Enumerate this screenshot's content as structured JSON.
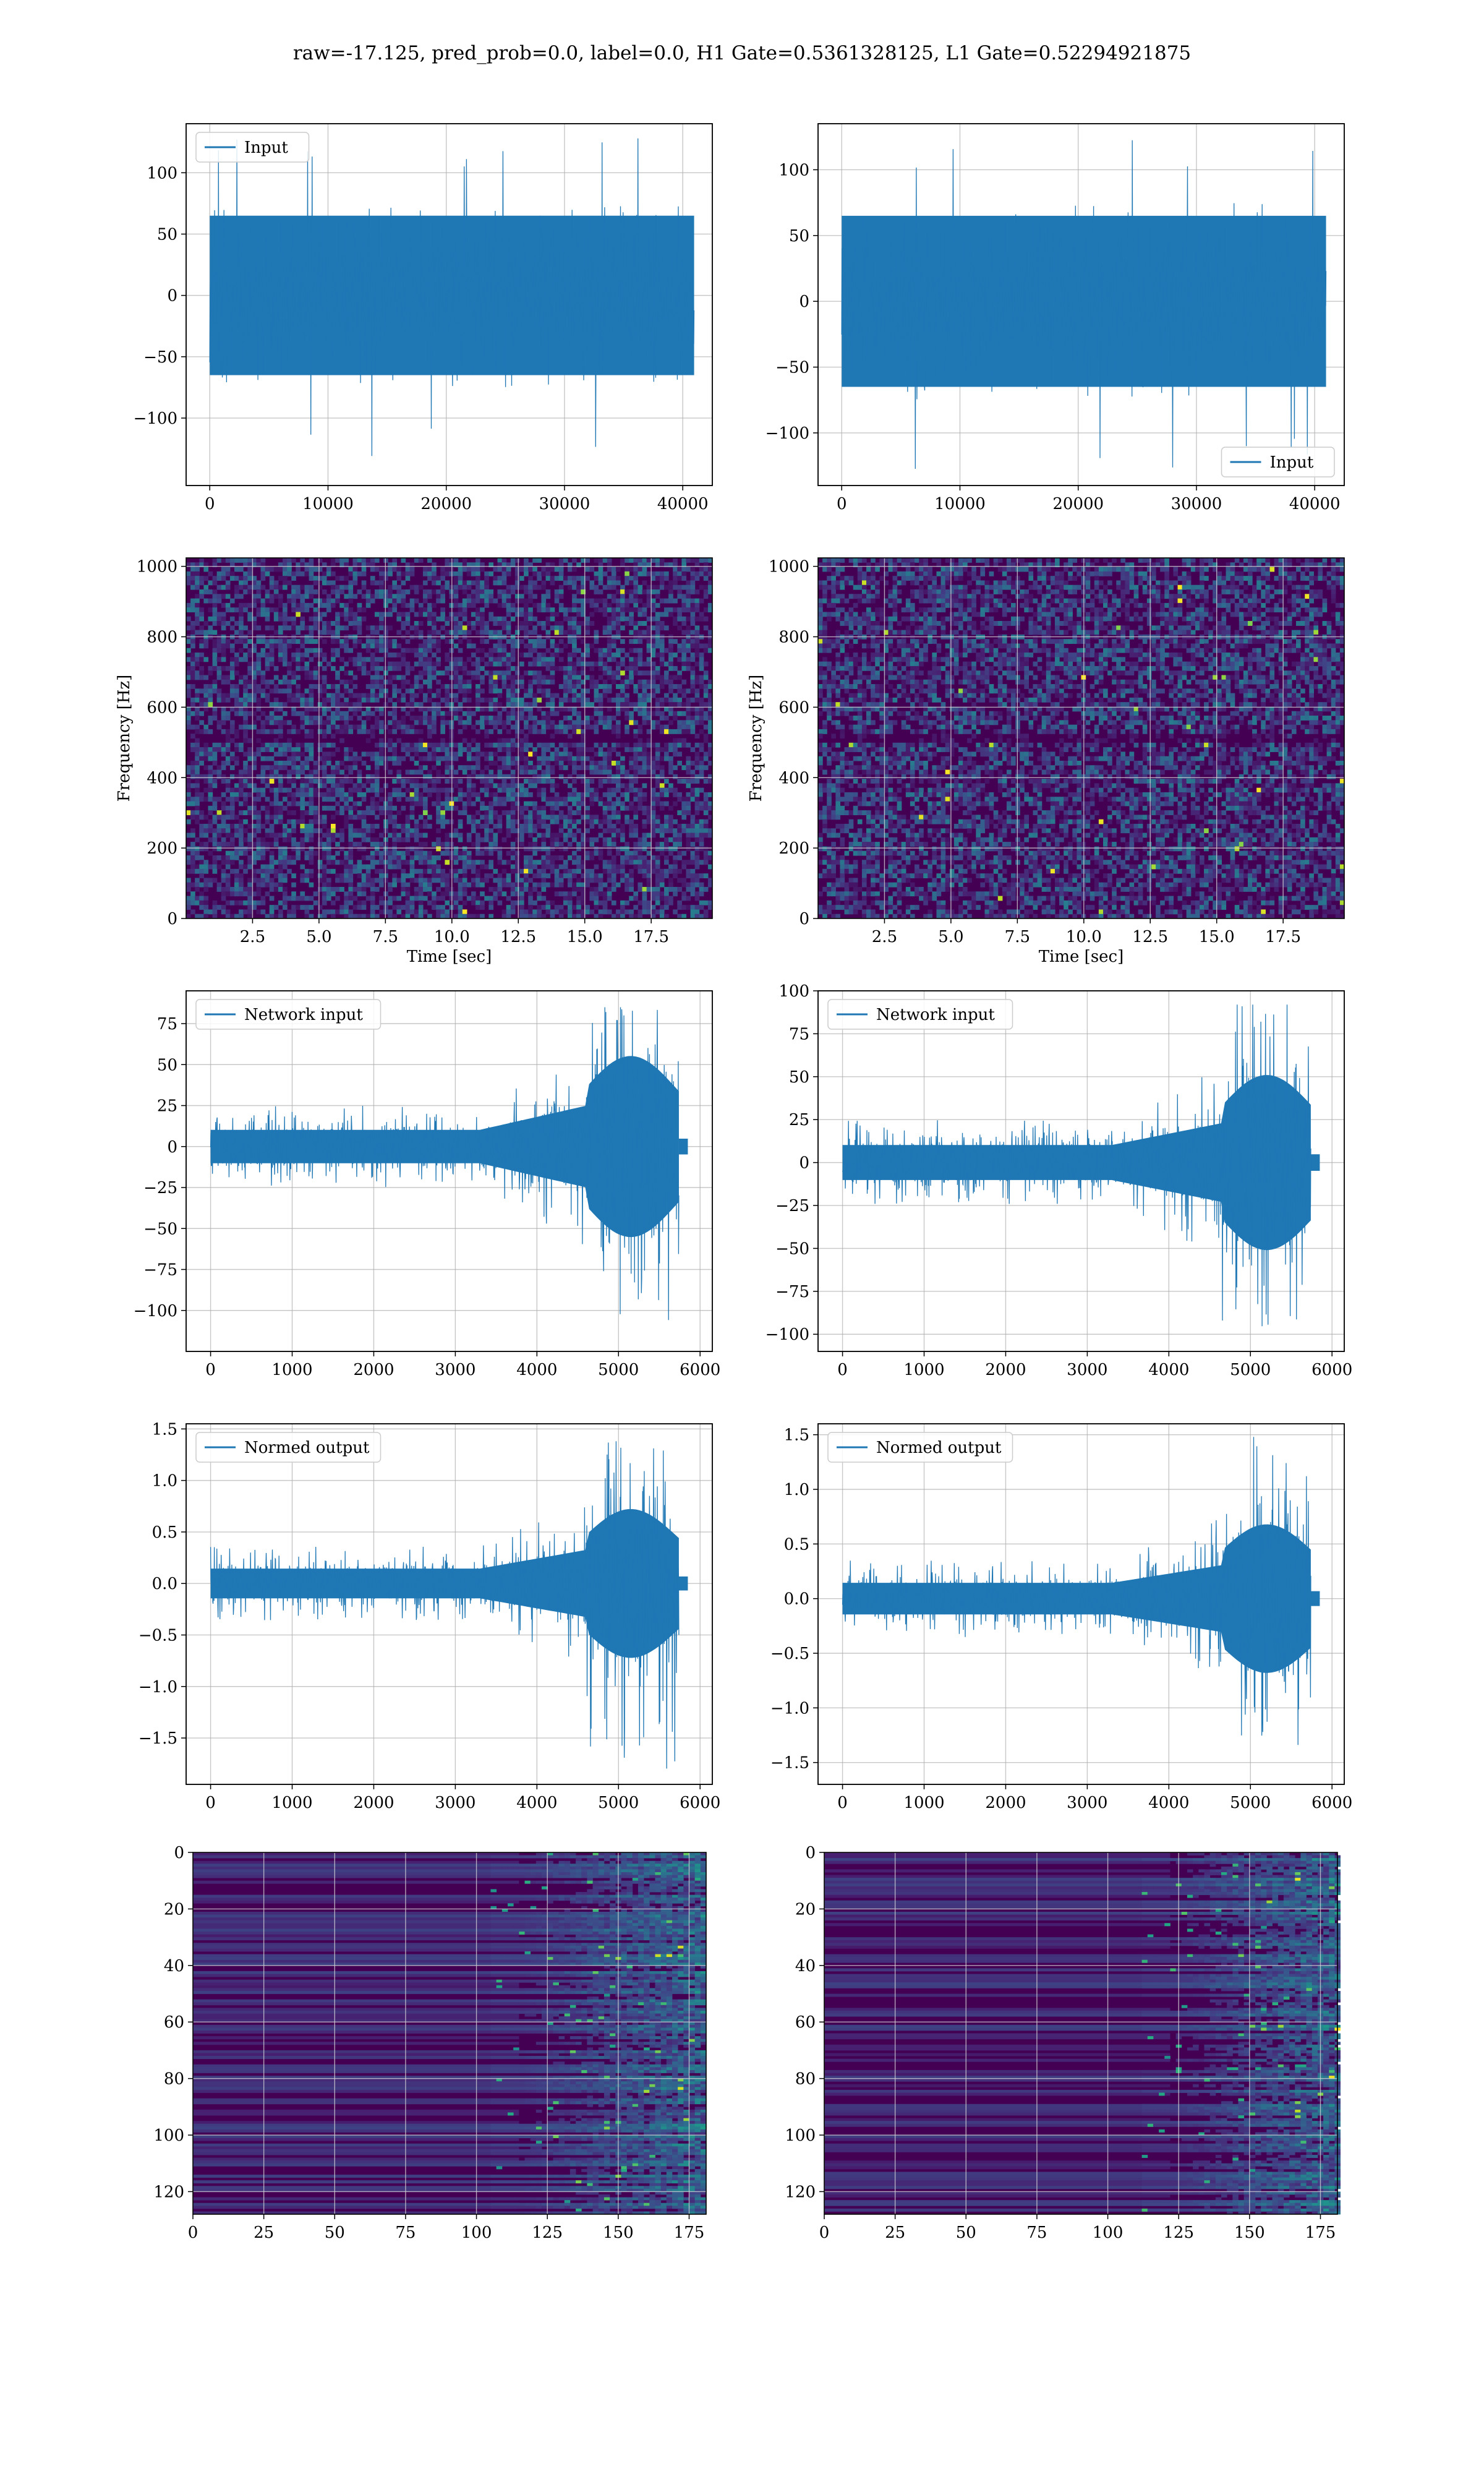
{
  "figure": {
    "title": "raw=-17.125, pred_prob=0.0, label=0.0, H1 Gate=0.5361328125, L1 Gate=0.52294921875"
  },
  "colors": {
    "line": "#1f77b4",
    "viridis_low": "#440154",
    "viridis_mid": "#21918c",
    "viridis_high": "#fde725",
    "grid": "#b0b0b0"
  },
  "chart_data": [
    {
      "id": "r1c1",
      "type": "line",
      "legend": "Input",
      "legend_loc": "upper left",
      "xlim": [
        -2000,
        42500
      ],
      "ylim": [
        -155,
        140
      ],
      "xticks": [
        0,
        10000,
        20000,
        30000,
        40000
      ],
      "xtick_labels": [
        "0",
        "10000",
        "20000",
        "30000",
        "40000"
      ],
      "yticks": [
        -100,
        -50,
        0,
        50,
        100
      ],
      "ytick_labels": [
        "−100",
        "−50",
        "0",
        "50",
        "100"
      ],
      "signal": {
        "kind": "noise",
        "x_start": 0,
        "x_end": 40960,
        "core": 65,
        "spike_max": 130,
        "spike_min": -135
      },
      "grid": true
    },
    {
      "id": "r1c2",
      "type": "line",
      "legend": "Input",
      "legend_loc": "lower right",
      "xlim": [
        -2000,
        42500
      ],
      "ylim": [
        -140,
        135
      ],
      "xticks": [
        0,
        10000,
        20000,
        30000,
        40000
      ],
      "xtick_labels": [
        "0",
        "10000",
        "20000",
        "30000",
        "40000"
      ],
      "yticks": [
        -100,
        -50,
        0,
        50,
        100
      ],
      "ytick_labels": [
        "−100",
        "−50",
        "0",
        "50",
        "100"
      ],
      "signal": {
        "kind": "noise",
        "x_start": 0,
        "x_end": 40960,
        "core": 65,
        "spike_max": 125,
        "spike_min": -128
      },
      "grid": true
    },
    {
      "id": "r2c1",
      "type": "heatmap",
      "variant": "spectrogram",
      "xlabel": "Time [sec]",
      "ylabel": "Frequency [Hz]",
      "xlim": [
        0,
        19.8
      ],
      "ylim": [
        0,
        1024
      ],
      "xticks": [
        2.5,
        5.0,
        7.5,
        10.0,
        12.5,
        15.0,
        17.5
      ],
      "xtick_labels": [
        "2.5",
        "5.0",
        "7.5",
        "10.0",
        "12.5",
        "15.0",
        "17.5"
      ],
      "yticks": [
        0,
        200,
        400,
        600,
        800,
        1000
      ],
      "ytick_labels": [
        "0",
        "200",
        "400",
        "600",
        "800",
        "1000"
      ],
      "dark_band_hz": [
        500,
        512
      ],
      "grid": true
    },
    {
      "id": "r2c2",
      "type": "heatmap",
      "variant": "spectrogram",
      "xlabel": "Time [sec]",
      "ylabel": "Frequency [Hz]",
      "xlim": [
        0,
        19.8
      ],
      "ylim": [
        0,
        1024
      ],
      "xticks": [
        2.5,
        5.0,
        7.5,
        10.0,
        12.5,
        15.0,
        17.5
      ],
      "xtick_labels": [
        "2.5",
        "5.0",
        "7.5",
        "10.0",
        "12.5",
        "15.0",
        "17.5"
      ],
      "yticks": [
        0,
        200,
        400,
        600,
        800,
        1000
      ],
      "ytick_labels": [
        "0",
        "200",
        "400",
        "600",
        "800",
        "1000"
      ],
      "dark_band_hz": [
        500,
        512
      ],
      "grid": true
    },
    {
      "id": "r3c1",
      "type": "line",
      "legend": "Network input",
      "legend_loc": "upper left",
      "xlim": [
        -300,
        6150
      ],
      "ylim": [
        -125,
        95
      ],
      "xticks": [
        0,
        1000,
        2000,
        3000,
        4000,
        5000,
        6000
      ],
      "xtick_labels": [
        "0",
        "1000",
        "2000",
        "3000",
        "4000",
        "5000",
        "6000"
      ],
      "yticks": [
        -100,
        -75,
        -50,
        -25,
        0,
        25,
        50,
        75
      ],
      "ytick_labels": [
        "−100",
        "−75",
        "−50",
        "−25",
        "0",
        "25",
        "50",
        "75"
      ],
      "signal": {
        "kind": "ramp",
        "x_start": 0,
        "x_end": 5740,
        "tail_end": 5850,
        "base": 12,
        "peak": 65,
        "ramp_start": 3300,
        "burst_start": 4600,
        "spike_max": 85,
        "spike_min": -115
      },
      "grid": true
    },
    {
      "id": "r3c2",
      "type": "line",
      "legend": "Network input",
      "legend_loc": "upper left",
      "xlim": [
        -300,
        6150
      ],
      "ylim": [
        -110,
        100
      ],
      "xticks": [
        0,
        1000,
        2000,
        3000,
        4000,
        5000,
        6000
      ],
      "xtick_labels": [
        "0",
        "1000",
        "2000",
        "3000",
        "4000",
        "5000",
        "6000"
      ],
      "yticks": [
        -100,
        -75,
        -50,
        -25,
        0,
        25,
        50,
        75,
        100
      ],
      "ytick_labels": [
        "−100",
        "−75",
        "−50",
        "−25",
        "0",
        "25",
        "50",
        "75",
        "100"
      ],
      "signal": {
        "kind": "ramp",
        "x_start": 0,
        "x_end": 5740,
        "tail_end": 5850,
        "base": 12,
        "peak": 60,
        "ramp_start": 3300,
        "burst_start": 4650,
        "spike_max": 92,
        "spike_min": -100
      },
      "grid": true
    },
    {
      "id": "r4c1",
      "type": "line",
      "legend": "Normed output",
      "legend_loc": "upper left",
      "xlim": [
        -300,
        6150
      ],
      "ylim": [
        -1.95,
        1.55
      ],
      "xticks": [
        0,
        1000,
        2000,
        3000,
        4000,
        5000,
        6000
      ],
      "xtick_labels": [
        "0",
        "1000",
        "2000",
        "3000",
        "4000",
        "5000",
        "6000"
      ],
      "yticks": [
        -1.5,
        -1.0,
        -0.5,
        0.0,
        0.5,
        1.0,
        1.5
      ],
      "ytick_labels": [
        "−1.5",
        "−1.0",
        "−0.5",
        "0.0",
        "0.5",
        "1.0",
        "1.5"
      ],
      "signal": {
        "kind": "ramp",
        "x_start": 0,
        "x_end": 5740,
        "tail_end": 5850,
        "base": 0.17,
        "peak": 0.85,
        "ramp_start": 3300,
        "burst_start": 4600,
        "spike_max": 1.38,
        "spike_min": -1.8
      },
      "grid": true
    },
    {
      "id": "r4c2",
      "type": "line",
      "legend": "Normed output",
      "legend_loc": "upper left",
      "xlim": [
        -300,
        6150
      ],
      "ylim": [
        -1.7,
        1.6
      ],
      "xticks": [
        0,
        1000,
        2000,
        3000,
        4000,
        5000,
        6000
      ],
      "xtick_labels": [
        "0",
        "1000",
        "2000",
        "3000",
        "4000",
        "5000",
        "6000"
      ],
      "yticks": [
        -1.5,
        -1.0,
        -0.5,
        0.0,
        0.5,
        1.0,
        1.5
      ],
      "ytick_labels": [
        "−1.5",
        "−1.0",
        "−0.5",
        "0.0",
        "0.5",
        "1.0",
        "1.5"
      ],
      "signal": {
        "kind": "ramp",
        "x_start": 0,
        "x_end": 5740,
        "tail_end": 5850,
        "base": 0.17,
        "peak": 0.8,
        "ramp_start": 3300,
        "burst_start": 4650,
        "spike_max": 1.48,
        "spike_min": -1.6
      },
      "grid": true
    },
    {
      "id": "r5c1",
      "type": "heatmap",
      "variant": "features",
      "xlim": [
        0,
        181
      ],
      "ylim": [
        128,
        0
      ],
      "xticks": [
        0,
        25,
        50,
        75,
        100,
        125,
        150,
        175
      ],
      "xtick_labels": [
        "0",
        "25",
        "50",
        "75",
        "100",
        "125",
        "150",
        "175"
      ],
      "yticks": [
        0,
        20,
        40,
        60,
        80,
        100,
        120
      ],
      "ytick_labels": [
        "0",
        "20",
        "40",
        "60",
        "80",
        "100",
        "120"
      ],
      "active_from_col": 115,
      "grid": true
    },
    {
      "id": "r5c2",
      "type": "heatmap",
      "variant": "features",
      "xlim": [
        0,
        181
      ],
      "ylim": [
        128,
        0
      ],
      "xticks": [
        0,
        25,
        50,
        75,
        100,
        125,
        150,
        175
      ],
      "xtick_labels": [
        "0",
        "25",
        "50",
        "75",
        "100",
        "125",
        "150",
        "175"
      ],
      "yticks": [
        0,
        20,
        40,
        60,
        80,
        100,
        120
      ],
      "ytick_labels": [
        "0",
        "20",
        "40",
        "60",
        "80",
        "100",
        "120"
      ],
      "active_from_col": 122,
      "grid": true
    }
  ]
}
